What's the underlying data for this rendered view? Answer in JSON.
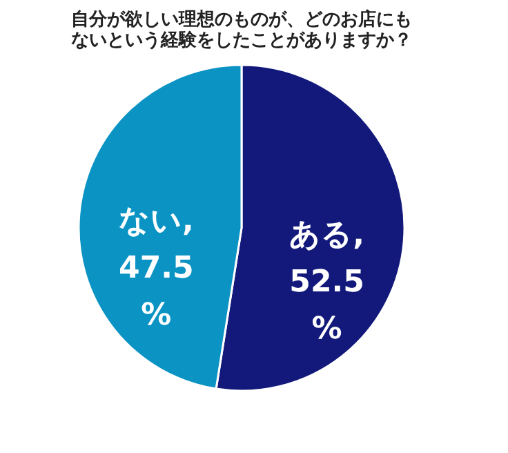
{
  "chart_data": {
    "type": "pie",
    "title": "自分が欲しい理想のものが、どのお店にもないという経験をしたことがありますか？",
    "categories": [
      "ある",
      "ない"
    ],
    "values": [
      52.5,
      47.5
    ],
    "colors": [
      "#12197a",
      "#0b93c4"
    ],
    "value_labels": [
      ", 52.5 %",
      ", 47.5 %"
    ],
    "legend": false
  }
}
